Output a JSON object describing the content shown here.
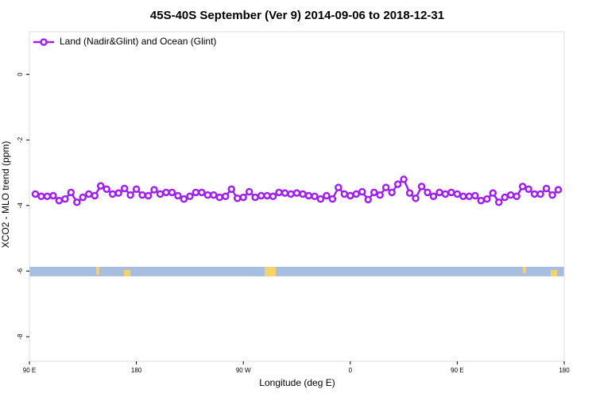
{
  "chart_data": {
    "type": "line",
    "title": "45S-40S September (Ver 9)   2014-09-06 to 2018-12-31",
    "x_label": "Longitude (deg E)",
    "y_label": "XCO2 - MLO trend (ppm)",
    "xlim": [
      90,
      540
    ],
    "xticks": [
      {
        "value": 90,
        "label": "90 E"
      },
      {
        "value": 180,
        "label": "180"
      },
      {
        "value": 270,
        "label": "90 W"
      },
      {
        "value": 360,
        "label": "0"
      },
      {
        "value": 450,
        "label": "90 E"
      },
      {
        "value": 540,
        "label": "180"
      }
    ],
    "ylim": [
      -8.75,
      1.3
    ],
    "yticks": [
      0,
      -2,
      -4,
      -6,
      -8
    ],
    "legend": "top-left",
    "x": [
      95,
      100,
      105,
      110,
      115,
      120,
      125,
      130,
      135,
      140,
      145,
      150,
      155,
      160,
      165,
      170,
      175,
      180,
      185,
      190,
      195,
      200,
      205,
      210,
      215,
      220,
      225,
      230,
      235,
      240,
      245,
      250,
      255,
      260,
      265,
      270,
      275,
      280,
      285,
      290,
      295,
      300,
      305,
      310,
      315,
      320,
      325,
      330,
      335,
      340,
      345,
      350,
      355,
      360,
      365,
      370,
      375,
      380,
      385,
      390,
      395,
      400,
      405,
      410,
      415,
      420,
      425,
      430,
      435,
      440,
      445,
      450,
      455,
      460,
      465,
      470,
      475,
      480,
      485,
      490,
      495,
      500,
      505,
      510,
      515,
      520,
      525,
      530,
      535
    ],
    "series": [
      {
        "name": "Land (Nadir&Glint) and Ocean (Glint)",
        "color": "#a020f0",
        "values": [
          -3.65,
          -3.72,
          -3.72,
          -3.7,
          -3.85,
          -3.8,
          -3.6,
          -3.9,
          -3.75,
          -3.65,
          -3.7,
          -3.4,
          -3.5,
          -3.65,
          -3.62,
          -3.48,
          -3.68,
          -3.5,
          -3.68,
          -3.7,
          -3.52,
          -3.65,
          -3.6,
          -3.6,
          -3.7,
          -3.8,
          -3.72,
          -3.6,
          -3.6,
          -3.68,
          -3.68,
          -3.75,
          -3.72,
          -3.5,
          -3.78,
          -3.75,
          -3.58,
          -3.75,
          -3.7,
          -3.7,
          -3.72,
          -3.6,
          -3.62,
          -3.65,
          -3.62,
          -3.65,
          -3.7,
          -3.72,
          -3.8,
          -3.7,
          -3.8,
          -3.45,
          -3.65,
          -3.7,
          -3.65,
          -3.58,
          -3.82,
          -3.6,
          -3.68,
          -3.45,
          -3.6,
          -3.35,
          -3.2,
          -3.62,
          -3.78,
          -3.42,
          -3.6,
          -3.72,
          -3.6,
          -3.65,
          -3.6,
          -3.65,
          -3.72,
          -3.72,
          -3.7,
          -3.85,
          -3.8,
          -3.62,
          -3.9,
          -3.75,
          -3.68,
          -3.72,
          -3.42,
          -3.5,
          -3.65,
          -3.65,
          -3.48,
          -3.68,
          -3.52
        ]
      }
    ]
  }
}
